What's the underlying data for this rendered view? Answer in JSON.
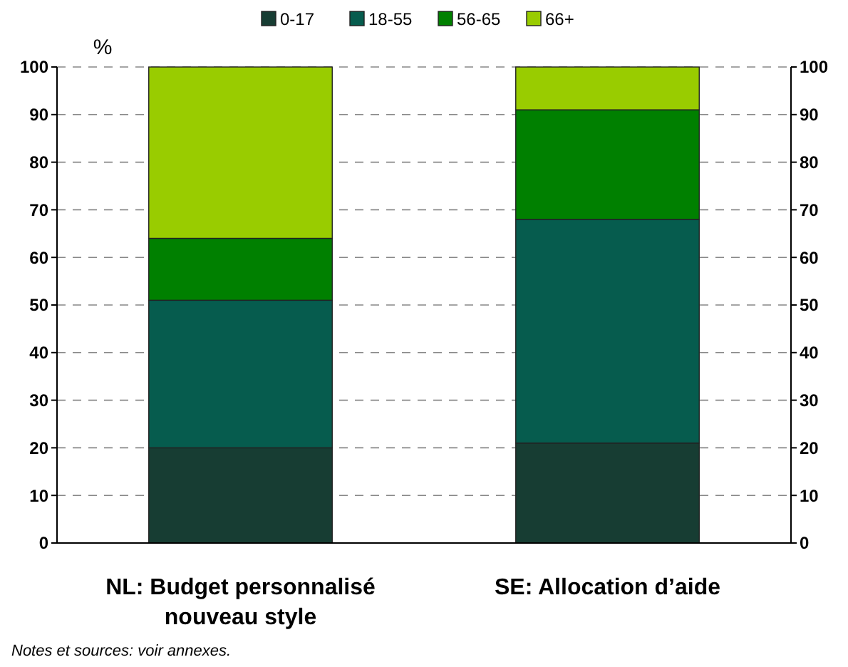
{
  "chart_data": {
    "type": "bar",
    "stacked": true,
    "ylabel": "%",
    "categories": [
      "NL: Budget personnalisé nouveau style",
      "SE: Allocation d’aide"
    ],
    "series": [
      {
        "name": "0-17",
        "color": "#173d33",
        "values": [
          20,
          21
        ]
      },
      {
        "name": "18-55",
        "color": "#065c4e",
        "values": [
          31,
          47
        ]
      },
      {
        "name": "56-65",
        "color": "#008000",
        "values": [
          13,
          23
        ]
      },
      {
        "name": "66+",
        "color": "#99cc00",
        "values": [
          36,
          9
        ]
      }
    ],
    "ylim": [
      0,
      100
    ],
    "yticks": [
      0,
      10,
      20,
      30,
      40,
      50,
      60,
      70,
      80,
      90,
      100
    ],
    "y2lim": [
      0,
      100
    ],
    "y2ticks": [
      0,
      10,
      20,
      30,
      40,
      50,
      60,
      70,
      80,
      90,
      100
    ],
    "grid": "y",
    "legend": "top",
    "annotations": [
      "Notes et sources: voir annexes."
    ]
  }
}
